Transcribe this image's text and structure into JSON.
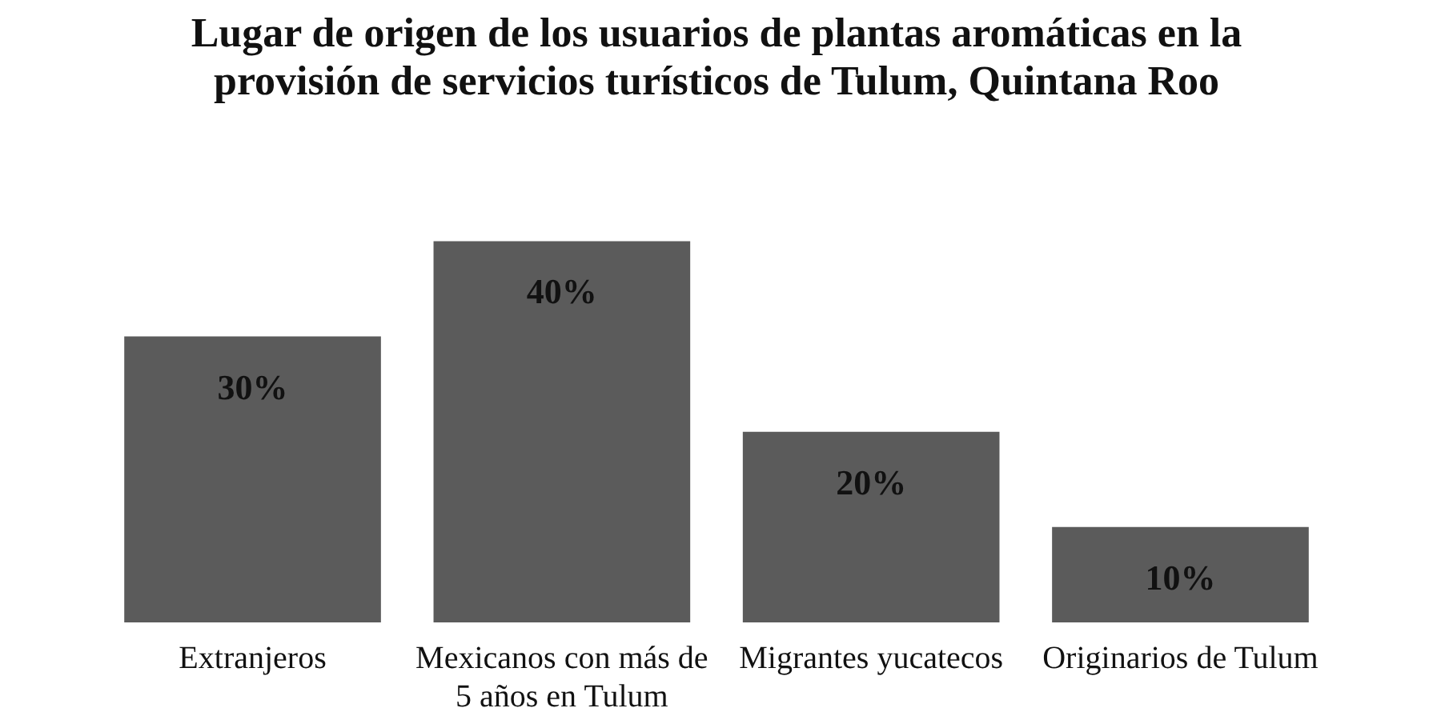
{
  "chart_data": {
    "type": "bar",
    "title": "Lugar de origen de los usuarios de plantas aromáticas en la provisión de servicios turísticos de Tulum, Quintana Roo",
    "categories": [
      "Extranjeros",
      "Mexicanos con más de 5 años en Tulum",
      "Migrantes yucatecos",
      "Originarios de Tulum"
    ],
    "values": [
      30,
      40,
      20,
      10
    ],
    "value_labels": [
      "30%",
      "40%",
      "20%",
      "10%"
    ],
    "color": "#5b5b5b"
  }
}
